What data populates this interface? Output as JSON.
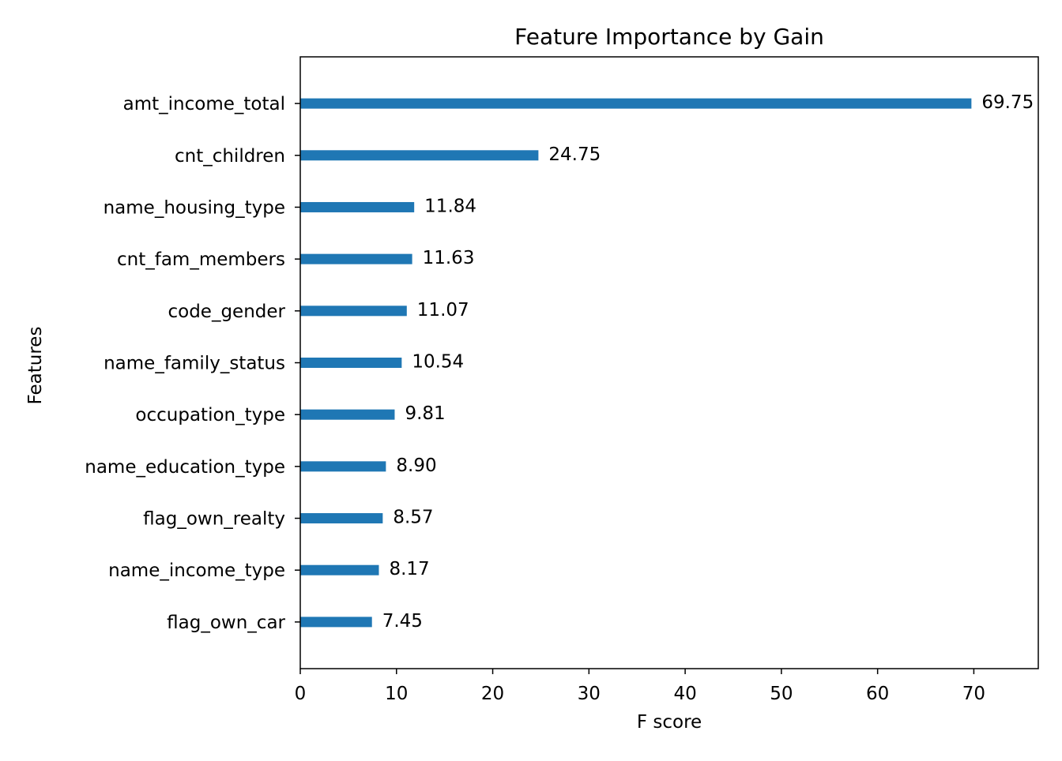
{
  "chart_data": {
    "type": "bar",
    "orientation": "horizontal",
    "title": "Feature Importance by Gain",
    "xlabel": "F score",
    "ylabel": "Features",
    "xlim": [
      0,
      76.7
    ],
    "xticks": [
      0,
      10,
      20,
      30,
      40,
      50,
      60,
      70
    ],
    "grid": false,
    "bar_color": "#1f77b4",
    "categories": [
      "amt_income_total",
      "cnt_children",
      "name_housing_type",
      "cnt_fam_members",
      "code_gender",
      "name_family_status",
      "occupation_type",
      "name_education_type",
      "flag_own_realty",
      "name_income_type",
      "flag_own_car"
    ],
    "values": [
      69.75,
      24.75,
      11.84,
      11.63,
      11.07,
      10.54,
      9.81,
      8.9,
      8.57,
      8.17,
      7.45
    ],
    "value_labels": [
      "69.75",
      "24.75",
      "11.84",
      "11.63",
      "11.07",
      "10.54",
      "9.81",
      "8.90",
      "8.57",
      "8.17",
      "7.45"
    ]
  }
}
